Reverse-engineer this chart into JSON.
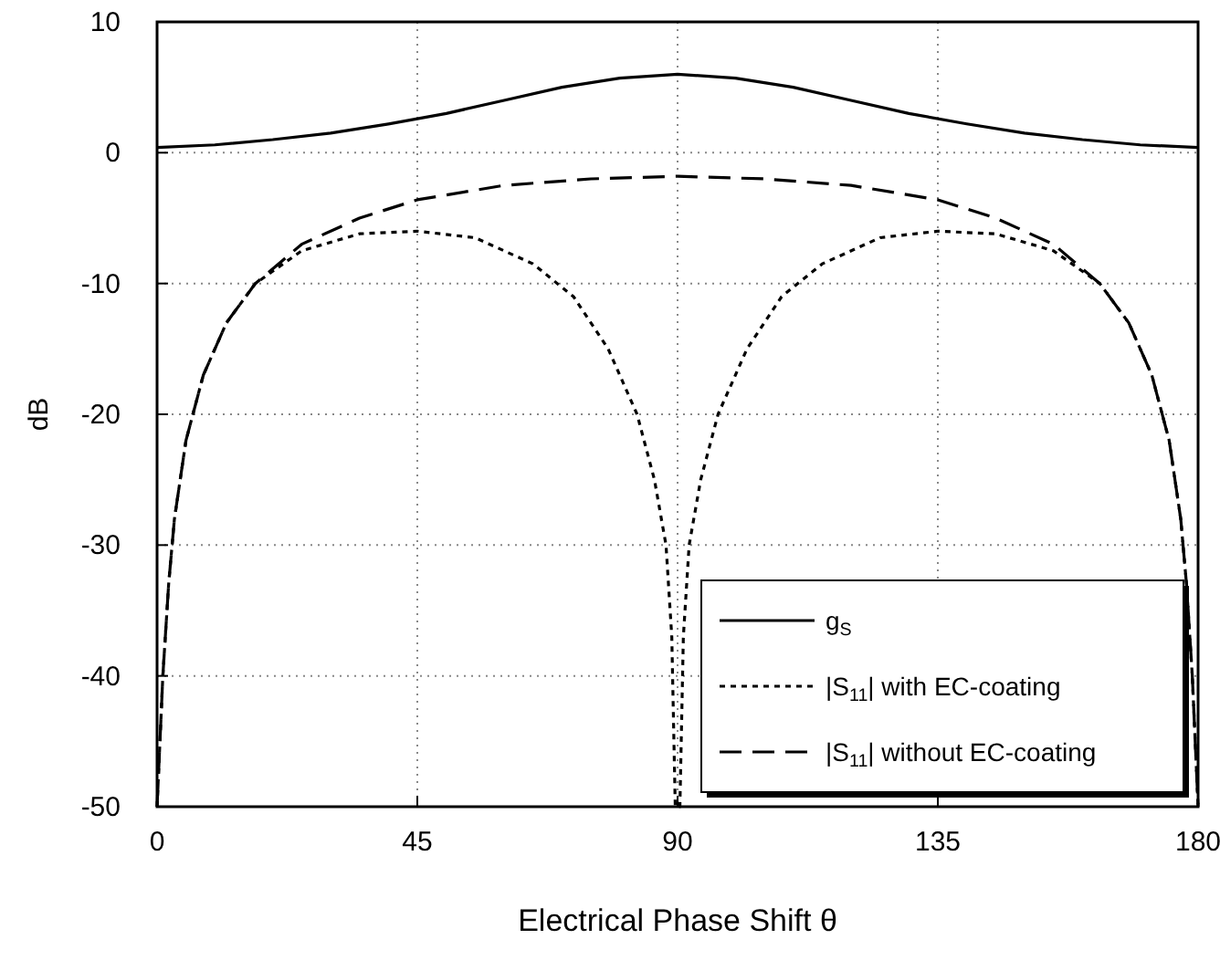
{
  "chart_data": {
    "type": "line",
    "xlabel": "Electrical Phase Shift  θ",
    "ylabel": "dB",
    "xlim": [
      0,
      180
    ],
    "ylim": [
      -50,
      10
    ],
    "xticks": [
      0,
      45,
      90,
      135,
      180
    ],
    "yticks": [
      -50,
      -40,
      -30,
      -20,
      -10,
      0,
      10
    ],
    "grid": true,
    "legend": "bottom right",
    "series": [
      {
        "name": "g$_{S}$",
        "color": "#000000",
        "line_style": "solid",
        "x": [
          0,
          10,
          20,
          30,
          40,
          50,
          60,
          70,
          80,
          90,
          100,
          110,
          120,
          130,
          140,
          150,
          160,
          170,
          180
        ],
        "values": [
          0.4,
          0.6,
          1,
          1.5,
          2.2,
          3,
          4,
          5,
          5.7,
          6,
          5.7,
          5,
          4,
          3,
          2.2,
          1.5,
          1,
          0.6,
          0.4
        ]
      },
      {
        "name": "|S$_{11}$| with EC-coating",
        "color": "#000000",
        "line_style": "dotted",
        "x": [
          0,
          1,
          2,
          3,
          5,
          8,
          12,
          17,
          25,
          35,
          45,
          55,
          65,
          72,
          78,
          83,
          86,
          88,
          89,
          89.6,
          90.4,
          91,
          92,
          94,
          97,
          102,
          108,
          115,
          125,
          135,
          145,
          155,
          163,
          168,
          172,
          175,
          177,
          178,
          179,
          180
        ],
        "values": [
          -50,
          -40,
          -33,
          -28,
          -22,
          -17,
          -13,
          -10,
          -7.5,
          -6.2,
          -6,
          -6.5,
          -8.5,
          -11,
          -15,
          -20,
          -25,
          -30,
          -37,
          -50,
          -50,
          -37,
          -30,
          -25,
          -20,
          -15,
          -11,
          -8.5,
          -6.5,
          -6,
          -6.2,
          -7.5,
          -10,
          -13,
          -17,
          -22,
          -28,
          -33,
          -40,
          -50
        ]
      },
      {
        "name": "|S$_{11}$| without EC-coating",
        "color": "#000000",
        "line_style": "dashed",
        "x": [
          0,
          1,
          2,
          3,
          5,
          8,
          12,
          17,
          25,
          35,
          45,
          60,
          75,
          90,
          105,
          120,
          135,
          145,
          155,
          163,
          168,
          172,
          175,
          177,
          178,
          179,
          180
        ],
        "values": [
          -50,
          -40,
          -33,
          -28,
          -22,
          -17,
          -13,
          -10,
          -7,
          -5,
          -3.6,
          -2.5,
          -2,
          -1.8,
          -2,
          -2.5,
          -3.6,
          -5,
          -7,
          -10,
          -13,
          -17,
          -22,
          -28,
          -33,
          -40,
          -50
        ]
      }
    ]
  }
}
